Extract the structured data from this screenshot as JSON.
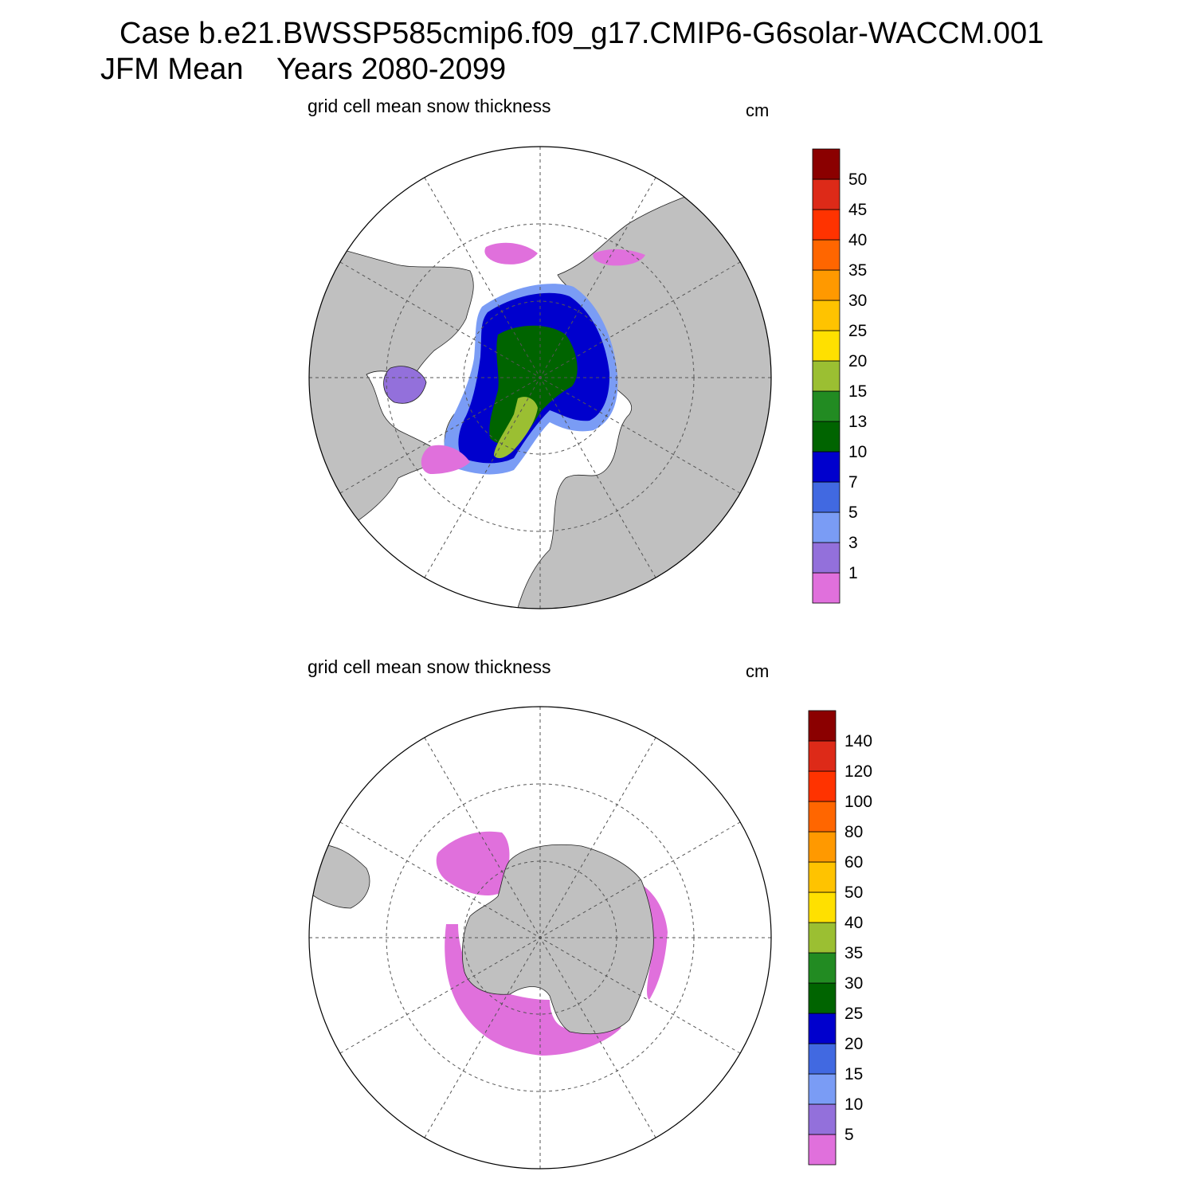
{
  "header": {
    "title_line1": "Case b.e21.BWSSP585cmip6.f09_g17.CMIP6-G6solar-WACCM.001",
    "title_line2": "JFM Mean    Years 2080-2099"
  },
  "panels": [
    {
      "title": "grid cell mean snow thickness",
      "units": "cm",
      "hemisphere": "north",
      "colorbar": {
        "labels": [
          "1",
          "3",
          "5",
          "7",
          "10",
          "13",
          "15",
          "20",
          "25",
          "30",
          "35",
          "40",
          "45",
          "50"
        ],
        "colors": [
          "#e070dc",
          "#9370db",
          "#7a9cf5",
          "#4169e1",
          "#0000cd",
          "#006400",
          "#228b22",
          "#9bbf32",
          "#ffe000",
          "#ffc300",
          "#ff9900",
          "#ff6600",
          "#ff3300",
          "#dd2a18",
          "#8b0000"
        ]
      }
    },
    {
      "title": "grid cell mean snow thickness",
      "units": "cm",
      "hemisphere": "south",
      "colorbar": {
        "labels": [
          "5",
          "10",
          "15",
          "20",
          "25",
          "30",
          "35",
          "40",
          "50",
          "60",
          "80",
          "100",
          "120",
          "140"
        ],
        "colors": [
          "#e070dc",
          "#9370db",
          "#7a9cf5",
          "#4169e1",
          "#0000cd",
          "#006400",
          "#228b22",
          "#9bbf32",
          "#ffe000",
          "#ffc300",
          "#ff9900",
          "#ff6600",
          "#ff3300",
          "#dd2a18",
          "#8b0000"
        ]
      }
    }
  ],
  "colors": {
    "land": "#c0c0c0",
    "ocean": "#ffffff",
    "graticule": "#555555"
  }
}
